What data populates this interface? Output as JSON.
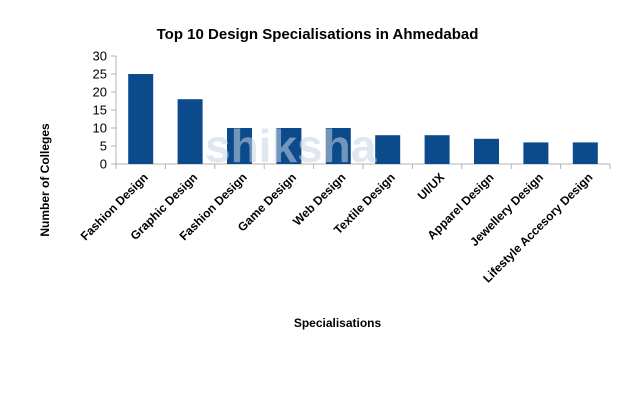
{
  "chart_data": {
    "type": "bar",
    "title": "Top 10 Design Specialisations in Ahmedabad",
    "xlabel": "Specialisations",
    "ylabel": "Number of Colleges",
    "categories": [
      "Fashion Design",
      "Graphic Design",
      "Fashion Design",
      "Game Design",
      "Web Design",
      "Textile Design",
      "UI/UX",
      "Apparel Design",
      "Jewellery Design",
      "Lifestyle Accesory Design"
    ],
    "values": [
      25,
      18,
      10,
      10,
      10,
      8,
      8,
      7,
      6,
      6
    ],
    "ylim": [
      0,
      30
    ],
    "yticks": [
      0,
      5,
      10,
      15,
      20,
      25,
      30
    ],
    "grid": false,
    "legend": null,
    "bar_color": "#0b4a8b"
  },
  "watermark": "shiksha"
}
